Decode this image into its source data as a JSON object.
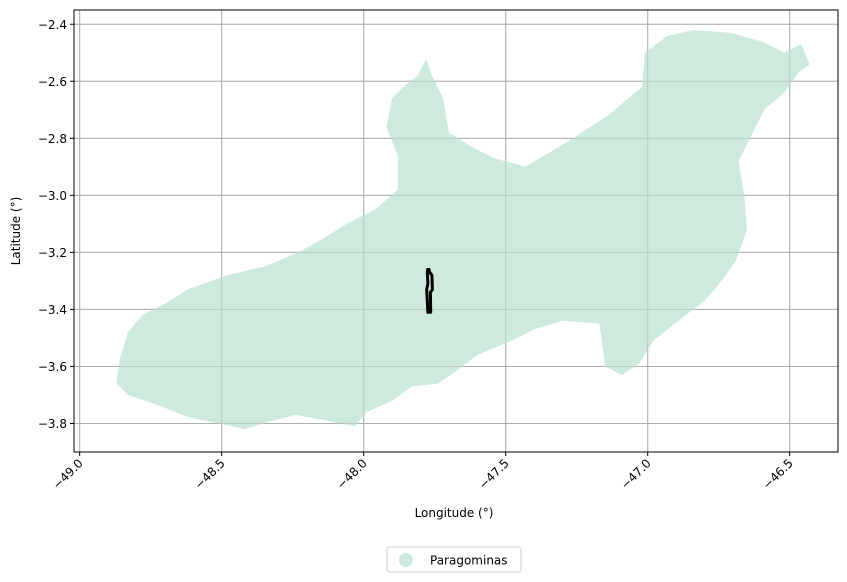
{
  "chart_data": {
    "type": "map",
    "xlabel": "Longitude (°)",
    "ylabel": "Latitude (°)",
    "xlim": [
      -49.02,
      -46.33
    ],
    "ylim": [
      -3.9,
      -2.35
    ],
    "x_ticks": [
      -49.0,
      -48.5,
      -48.0,
      -47.5,
      -47.0,
      -46.5
    ],
    "x_tick_labels": [
      "−49.0",
      "−48.5",
      "−48.0",
      "−47.5",
      "−47.0",
      "−46.5"
    ],
    "y_ticks": [
      -2.4,
      -2.6,
      -2.8,
      -3.0,
      -3.2,
      -3.4,
      -3.6,
      -3.8
    ],
    "y_tick_labels": [
      "−2.4",
      "−2.6",
      "−2.8",
      "−3.0",
      "−3.2",
      "−3.4",
      "−3.6",
      "−3.8"
    ],
    "x_tick_rotation_deg": 45,
    "grid": true,
    "legend": {
      "placement": "bottom-center, below axes",
      "entries": [
        {
          "name": "Paragominas",
          "color": "#cdeadc"
        }
      ]
    },
    "region": {
      "name": "Paragominas",
      "fill_color": "#cdeadc",
      "outline": [
        [
          -48.86,
          -3.58
        ],
        [
          -48.87,
          -3.66
        ],
        [
          -48.83,
          -3.7
        ],
        [
          -48.74,
          -3.73
        ],
        [
          -48.61,
          -3.78
        ],
        [
          -48.51,
          -3.8
        ],
        [
          -48.42,
          -3.82
        ],
        [
          -48.32,
          -3.79
        ],
        [
          -48.24,
          -3.77
        ],
        [
          -48.13,
          -3.79
        ],
        [
          -48.03,
          -3.81
        ],
        [
          -47.99,
          -3.76
        ],
        [
          -47.9,
          -3.72
        ],
        [
          -47.83,
          -3.67
        ],
        [
          -47.74,
          -3.66
        ],
        [
          -47.68,
          -3.62
        ],
        [
          -47.6,
          -3.56
        ],
        [
          -47.48,
          -3.51
        ],
        [
          -47.4,
          -3.47
        ],
        [
          -47.3,
          -3.44
        ],
        [
          -47.17,
          -3.45
        ],
        [
          -47.15,
          -3.6
        ],
        [
          -47.09,
          -3.63
        ],
        [
          -47.03,
          -3.59
        ],
        [
          -46.98,
          -3.51
        ],
        [
          -46.88,
          -3.43
        ],
        [
          -46.8,
          -3.37
        ],
        [
          -46.74,
          -3.3
        ],
        [
          -46.69,
          -3.23
        ],
        [
          -46.65,
          -3.12
        ],
        [
          -46.66,
          -3.0
        ],
        [
          -46.68,
          -2.88
        ],
        [
          -46.63,
          -2.78
        ],
        [
          -46.59,
          -2.7
        ],
        [
          -46.52,
          -2.64
        ],
        [
          -46.47,
          -2.57
        ],
        [
          -46.43,
          -2.54
        ],
        [
          -46.46,
          -2.47
        ],
        [
          -46.52,
          -2.5
        ],
        [
          -46.6,
          -2.46
        ],
        [
          -46.71,
          -2.43
        ],
        [
          -46.84,
          -2.42
        ],
        [
          -46.93,
          -2.44
        ],
        [
          -47.01,
          -2.5
        ],
        [
          -47.02,
          -2.62
        ],
        [
          -47.14,
          -2.72
        ],
        [
          -47.28,
          -2.81
        ],
        [
          -47.43,
          -2.9
        ],
        [
          -47.54,
          -2.87
        ],
        [
          -47.62,
          -2.83
        ],
        [
          -47.7,
          -2.78
        ],
        [
          -47.72,
          -2.66
        ],
        [
          -47.76,
          -2.58
        ],
        [
          -47.78,
          -2.52
        ],
        [
          -47.81,
          -2.58
        ],
        [
          -47.86,
          -2.62
        ],
        [
          -47.9,
          -2.66
        ],
        [
          -47.92,
          -2.76
        ],
        [
          -47.88,
          -2.86
        ],
        [
          -47.88,
          -2.98
        ],
        [
          -47.96,
          -3.05
        ],
        [
          -48.06,
          -3.1
        ],
        [
          -48.14,
          -3.15
        ],
        [
          -48.23,
          -3.2
        ],
        [
          -48.35,
          -3.25
        ],
        [
          -48.48,
          -3.28
        ],
        [
          -48.62,
          -3.33
        ],
        [
          -48.7,
          -3.38
        ],
        [
          -48.78,
          -3.42
        ],
        [
          -48.83,
          -3.48
        ]
      ]
    },
    "highlight": {
      "stroke_color": "#000000",
      "outline": [
        [
          -47.775,
          -3.26
        ],
        [
          -47.77,
          -3.26
        ],
        [
          -47.768,
          -3.27
        ],
        [
          -47.76,
          -3.28
        ],
        [
          -47.758,
          -3.33
        ],
        [
          -47.765,
          -3.34
        ],
        [
          -47.764,
          -3.41
        ],
        [
          -47.774,
          -3.41
        ],
        [
          -47.778,
          -3.33
        ],
        [
          -47.774,
          -3.31
        ],
        [
          -47.776,
          -3.27
        ]
      ]
    }
  }
}
